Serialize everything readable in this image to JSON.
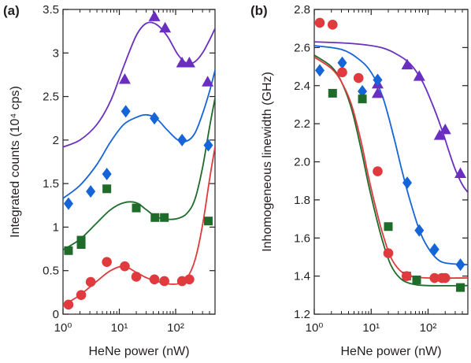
{
  "chart_data": [
    {
      "type": "scatter",
      "panel_label": "(a)",
      "xlabel": "HeNe power (nW)",
      "ylabel": "Integrated counts (10⁴ cps)",
      "x_scale": "log",
      "xlim": [
        1,
        500
      ],
      "ylim": [
        0,
        3.5
      ],
      "x_ticks": [
        1,
        10,
        100
      ],
      "x_tick_labels": [
        "10⁰",
        "10¹",
        "10²"
      ],
      "y_ticks": [
        0,
        0.5,
        1,
        1.5,
        2,
        2.5,
        3,
        3.5
      ],
      "y_tick_labels": [
        "0",
        "0.5",
        "1",
        "1.5",
        "2",
        "2.5",
        "3",
        "3.5"
      ],
      "grid": false,
      "series": [
        {
          "marker": "triangle",
          "color": "#6a2fbf",
          "points": [
            [
              12.5,
              2.7
            ],
            [
              42,
              3.42
            ],
            [
              65,
              3.29
            ],
            [
              130,
              2.89
            ],
            [
              175,
              2.89
            ],
            [
              370,
              2.67
            ]
          ],
          "fit": [
            [
              1,
              1.92
            ],
            [
              2,
              2.0
            ],
            [
              4,
              2.18
            ],
            [
              7,
              2.45
            ],
            [
              12,
              2.85
            ],
            [
              20,
              3.2
            ],
            [
              30,
              3.34
            ],
            [
              45,
              3.33
            ],
            [
              70,
              3.2
            ],
            [
              110,
              2.98
            ],
            [
              160,
              2.88
            ],
            [
              220,
              2.9
            ],
            [
              300,
              3.0
            ],
            [
              400,
              3.15
            ],
            [
              500,
              3.28
            ]
          ]
        },
        {
          "marker": "diamond",
          "color": "#1565d8",
          "points": [
            [
              1.25,
              1.27
            ],
            [
              3.1,
              1.41
            ],
            [
              6.0,
              1.61
            ],
            [
              13,
              2.33
            ],
            [
              42,
              2.25
            ],
            [
              130,
              2.0
            ],
            [
              380,
              1.94
            ]
          ],
          "fit": [
            [
              1,
              1.33
            ],
            [
              2,
              1.48
            ],
            [
              4,
              1.72
            ],
            [
              7,
              1.98
            ],
            [
              12,
              2.18
            ],
            [
              20,
              2.26
            ],
            [
              30,
              2.29
            ],
            [
              45,
              2.25
            ],
            [
              70,
              2.12
            ],
            [
              110,
              2.0
            ],
            [
              160,
              1.99
            ],
            [
              220,
              2.08
            ],
            [
              300,
              2.3
            ],
            [
              400,
              2.56
            ],
            [
              500,
              2.8
            ]
          ]
        },
        {
          "marker": "square",
          "color": "#1e6b2a",
          "points": [
            [
              1.25,
              0.73
            ],
            [
              2.1,
              0.8
            ],
            [
              2.1,
              0.85
            ],
            [
              6.0,
              1.44
            ],
            [
              20,
              1.22
            ],
            [
              43,
              1.11
            ],
            [
              63,
              1.11
            ],
            [
              380,
              1.07
            ]
          ],
          "fit": [
            [
              1,
              0.74
            ],
            [
              2,
              0.86
            ],
            [
              4,
              1.05
            ],
            [
              7,
              1.2
            ],
            [
              12,
              1.28
            ],
            [
              20,
              1.28
            ],
            [
              30,
              1.2
            ],
            [
              45,
              1.12
            ],
            [
              70,
              1.09
            ],
            [
              110,
              1.1
            ],
            [
              160,
              1.16
            ],
            [
              220,
              1.32
            ],
            [
              300,
              1.68
            ],
            [
              400,
              2.15
            ],
            [
              500,
              2.48
            ]
          ]
        },
        {
          "marker": "circle",
          "color": "#e03a3e",
          "points": [
            [
              1.25,
              0.11
            ],
            [
              2.1,
              0.22
            ],
            [
              3.1,
              0.37
            ],
            [
              6.0,
              0.6
            ],
            [
              12.5,
              0.55
            ],
            [
              20,
              0.43
            ],
            [
              42,
              0.4
            ],
            [
              63,
              0.38
            ],
            [
              130,
              0.38
            ],
            [
              175,
              0.4
            ]
          ],
          "fit": [
            [
              1,
              0.1
            ],
            [
              2,
              0.22
            ],
            [
              4,
              0.38
            ],
            [
              7,
              0.5
            ],
            [
              12,
              0.55
            ],
            [
              20,
              0.48
            ],
            [
              30,
              0.42
            ],
            [
              45,
              0.38
            ],
            [
              70,
              0.35
            ],
            [
              110,
              0.35
            ],
            [
              160,
              0.42
            ],
            [
              220,
              0.62
            ],
            [
              300,
              1.02
            ],
            [
              400,
              1.55
            ],
            [
              500,
              1.92
            ]
          ]
        }
      ]
    },
    {
      "type": "scatter",
      "panel_label": "(b)",
      "xlabel": "HeNe power (nW)",
      "ylabel": "Inhomogeneous linewidth (GHz)",
      "x_scale": "log",
      "xlim": [
        1,
        500
      ],
      "ylim": [
        1.2,
        2.8
      ],
      "x_ticks": [
        1,
        10,
        100
      ],
      "x_tick_labels": [
        "10⁰",
        "10¹",
        "10²"
      ],
      "y_ticks": [
        1.2,
        1.4,
        1.6,
        1.8,
        2.0,
        2.2,
        2.4,
        2.6,
        2.8
      ],
      "y_tick_labels": [
        "1.2",
        "1.4",
        "1.6",
        "1.8",
        "2.0",
        "2.2",
        "2.4",
        "2.6",
        "2.8"
      ],
      "grid": false,
      "series": [
        {
          "marker": "triangle",
          "color": "#6a2fbf",
          "points": [
            [
              13,
              2.36
            ],
            [
              13,
              2.41
            ],
            [
              43,
              2.51
            ],
            [
              70,
              2.45
            ],
            [
              160,
              2.14
            ],
            [
              200,
              2.17
            ],
            [
              370,
              1.94
            ]
          ],
          "fit": [
            [
              1,
              2.63
            ],
            [
              5,
              2.62
            ],
            [
              15,
              2.6
            ],
            [
              30,
              2.56
            ],
            [
              50,
              2.51
            ],
            [
              80,
              2.42
            ],
            [
              120,
              2.3
            ],
            [
              170,
              2.18
            ],
            [
              230,
              2.06
            ],
            [
              300,
              1.96
            ],
            [
              400,
              1.88
            ],
            [
              500,
              1.84
            ]
          ]
        },
        {
          "marker": "diamond",
          "color": "#1565d8",
          "points": [
            [
              1.25,
              2.48
            ],
            [
              3.1,
              2.52
            ],
            [
              7.0,
              2.37
            ],
            [
              13,
              2.43
            ],
            [
              43,
              1.89
            ],
            [
              70,
              1.64
            ],
            [
              130,
              1.54
            ],
            [
              370,
              1.46
            ]
          ],
          "fit": [
            [
              1,
              2.61
            ],
            [
              3,
              2.59
            ],
            [
              6,
              2.54
            ],
            [
              10,
              2.47
            ],
            [
              16,
              2.34
            ],
            [
              25,
              2.13
            ],
            [
              35,
              1.95
            ],
            [
              50,
              1.78
            ],
            [
              75,
              1.62
            ],
            [
              110,
              1.53
            ],
            [
              160,
              1.48
            ],
            [
              250,
              1.465
            ],
            [
              500,
              1.46
            ]
          ]
        },
        {
          "marker": "square",
          "color": "#1e6b2a",
          "points": [
            [
              2.1,
              2.36
            ],
            [
              7.0,
              2.33
            ],
            [
              20,
              1.66
            ],
            [
              42,
              1.4
            ],
            [
              63,
              1.38
            ],
            [
              370,
              1.34
            ]
          ],
          "fit": [
            [
              1,
              2.56
            ],
            [
              2,
              2.5
            ],
            [
              3,
              2.42
            ],
            [
              4.5,
              2.28
            ],
            [
              6.5,
              2.08
            ],
            [
              9,
              1.88
            ],
            [
              12,
              1.72
            ],
            [
              16,
              1.58
            ],
            [
              22,
              1.46
            ],
            [
              32,
              1.39
            ],
            [
              50,
              1.36
            ],
            [
              100,
              1.35
            ],
            [
              500,
              1.35
            ]
          ]
        },
        {
          "marker": "circle",
          "color": "#e03a3e",
          "points": [
            [
              1.25,
              2.73
            ],
            [
              2.1,
              2.72
            ],
            [
              3.1,
              2.47
            ],
            [
              6.0,
              2.44
            ],
            [
              13,
              1.95
            ],
            [
              20,
              1.52
            ],
            [
              42,
              1.4
            ],
            [
              130,
              1.39
            ],
            [
              175,
              1.39
            ],
            [
              200,
              1.39
            ]
          ],
          "fit": [
            [
              1,
              2.55
            ],
            [
              2,
              2.49
            ],
            [
              3,
              2.42
            ],
            [
              4.5,
              2.3
            ],
            [
              6.5,
              2.12
            ],
            [
              9,
              1.92
            ],
            [
              12,
              1.76
            ],
            [
              16,
              1.62
            ],
            [
              22,
              1.5
            ],
            [
              32,
              1.43
            ],
            [
              50,
              1.4
            ],
            [
              100,
              1.39
            ],
            [
              500,
              1.39
            ]
          ]
        }
      ]
    }
  ]
}
